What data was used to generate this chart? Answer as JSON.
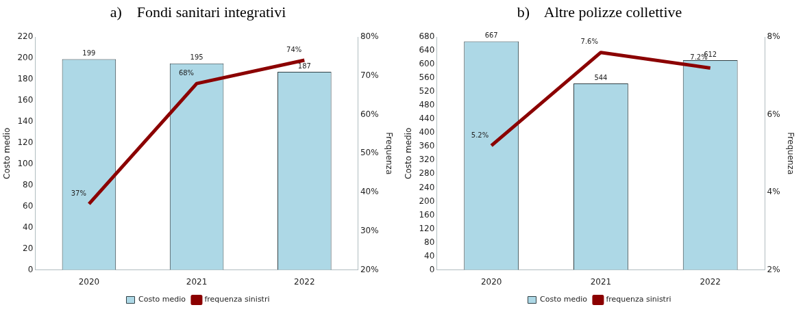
{
  "chart_data": [
    {
      "type": "bar",
      "title": "a)    Fondi sanitari integrativi",
      "categories": [
        "2020",
        "2021",
        "2022"
      ],
      "ylabel": "Costo medio",
      "y2label": "Frequenza",
      "ylim": [
        0,
        220
      ],
      "yticks": [
        0,
        20,
        40,
        60,
        80,
        100,
        120,
        140,
        160,
        180,
        200,
        220
      ],
      "y2lim": [
        20,
        80
      ],
      "y2ticks": [
        {
          "value": 20,
          "label": "20%"
        },
        {
          "value": 30,
          "label": "30%"
        },
        {
          "value": 40,
          "label": "40%"
        },
        {
          "value": 50,
          "label": "50%"
        },
        {
          "value": 60,
          "label": "60%"
        },
        {
          "value": 70,
          "label": "70%"
        },
        {
          "value": 80,
          "label": "80%"
        }
      ],
      "legend": "bottom",
      "series": [
        {
          "name": "Costo medio",
          "color": "#add8e6",
          "values": [
            199,
            195,
            187
          ],
          "value_labels": [
            "199",
            "195",
            "187"
          ]
        },
        {
          "name": "frequenza sinistri",
          "type": "line",
          "axis": "y2",
          "color": "#8b0000",
          "values": [
            37,
            68,
            74
          ],
          "value_labels": [
            "37%",
            "68%",
            "74%"
          ]
        }
      ]
    },
    {
      "type": "bar",
      "title": "b)    Altre polizze collettive",
      "categories": [
        "2020",
        "2021",
        "2022"
      ],
      "ylabel": "Costo medio",
      "y2label": "Frequenza",
      "ylim": [
        0,
        680
      ],
      "yticks": [
        0,
        40,
        80,
        120,
        160,
        200,
        240,
        280,
        320,
        360,
        400,
        440,
        480,
        520,
        560,
        600,
        640,
        680
      ],
      "y2lim": [
        2,
        8
      ],
      "y2ticks": [
        {
          "value": 2,
          "label": "2%"
        },
        {
          "value": 4,
          "label": "4%"
        },
        {
          "value": 6,
          "label": "6%"
        },
        {
          "value": 8,
          "label": "8%"
        }
      ],
      "legend": "bottom",
      "series": [
        {
          "name": "Costo medio",
          "color": "#add8e6",
          "values": [
            667,
            544,
            612
          ],
          "value_labels": [
            "667",
            "544",
            "612"
          ]
        },
        {
          "name": "frequenza sinistri",
          "type": "line",
          "axis": "y2",
          "color": "#8b0000",
          "values": [
            5.2,
            7.6,
            7.2
          ],
          "value_labels": [
            "5.2%",
            "7.6%",
            "7.2%"
          ]
        }
      ]
    }
  ]
}
